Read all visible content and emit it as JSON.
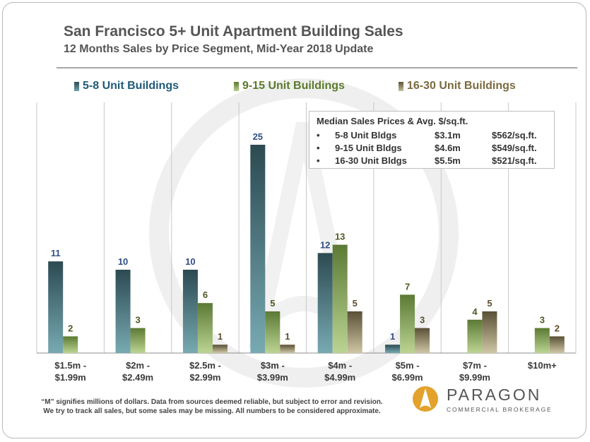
{
  "title": "San Francisco 5+ Unit Apartment Building Sales",
  "subtitle": "12 Months Sales by Price Segment, Mid-Year 2018 Update",
  "colors": {
    "series_5_8": "#3f6871",
    "series_9_15": "#8aa65d",
    "series_16_30": "#8a7e5c",
    "label_5_8": "#2f4f86",
    "label_9_15": "#4e5a22",
    "label_16_30": "#5b4e2d",
    "legend_5_8": "#1f5a78",
    "legend_9_15": "#5b7a2a",
    "legend_16_30": "#7a6a3e",
    "logo_orange": "#e3a22c"
  },
  "legend": {
    "item_5_8": "5-8 Unit Buildings",
    "item_9_15": "9-15 Unit Buildings",
    "item_16_30": "16-30 Unit Buildings"
  },
  "infobox": {
    "header": "Median  Sales Prices & Avg. $/sq.ft.",
    "bullet": "•",
    "rows": [
      {
        "label": "5-8 Unit Bldgs",
        "price": "$3.1m",
        "psf": "$562/sq.ft."
      },
      {
        "label": "9-15 Unit Bldgs",
        "price": "$4.6m",
        "psf": "$549/sq.ft."
      },
      {
        "label": "16-30 Unit Bldgs",
        "price": "$5.5m",
        "psf": "$521/sq.ft."
      }
    ]
  },
  "chart_data": {
    "type": "bar",
    "categories": [
      [
        "$1.5m -",
        "$1.99m"
      ],
      [
        "$2m -",
        "$2.49m"
      ],
      [
        "$2.5m -",
        "$2.99m"
      ],
      [
        "$3m -",
        "$3.99m"
      ],
      [
        "$4m -",
        "$4.99m"
      ],
      [
        "$5m -",
        "$6.99m"
      ],
      [
        "$7m -",
        "$9.99m"
      ],
      [
        "$10m+"
      ]
    ],
    "series": [
      {
        "name": "5-8 Unit Buildings",
        "values": [
          11,
          10,
          10,
          25,
          12,
          1,
          null,
          null
        ]
      },
      {
        "name": "9-15 Unit Buildings",
        "values": [
          2,
          3,
          6,
          5,
          13,
          7,
          4,
          3
        ]
      },
      {
        "name": "16-30 Unit Buildings",
        "values": [
          null,
          null,
          1,
          1,
          5,
          3,
          5,
          2
        ]
      }
    ],
    "ylim": [
      0,
      25
    ],
    "grid": false,
    "legend_position": "top"
  },
  "footnote": {
    "line1": "“M” signifies millions of dollars. Data from sources deemed reliable, but subject to error and revision.",
    "line2": "We try to track all sales, but some sales may be missing. All numbers to be considered approximate."
  },
  "logo": {
    "name": "PARAGON",
    "tagline": "COMMERCIAL BROKERAGE"
  }
}
